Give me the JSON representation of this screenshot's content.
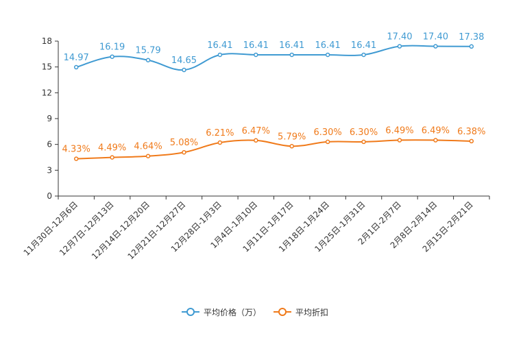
{
  "chart_data": {
    "type": "line",
    "categories": [
      "11月30日-12月6日",
      "12月7日-12月13日",
      "12月14日-12月20日",
      "12月21日-12月27日",
      "12月28日-1月3日",
      "1月4日-1月10日",
      "1月11日-1月17日",
      "1月18日-1月24日",
      "1月25日-1月31日",
      "2月1日-2月7日",
      "2月8日-2月14日",
      "2月15日-2月21日"
    ],
    "ylim": [
      0,
      18
    ],
    "yticks": [
      0,
      3,
      6,
      9,
      12,
      15,
      18
    ],
    "series": [
      {
        "name": "平均价格（万）",
        "color": "#3f9ad2",
        "values": [
          14.97,
          16.19,
          15.79,
          14.65,
          16.41,
          16.41,
          16.41,
          16.41,
          16.41,
          17.4,
          17.4,
          17.38
        ],
        "labels": [
          "14.97",
          "16.19",
          "15.79",
          "14.65",
          "16.41",
          "16.41",
          "16.41",
          "16.41",
          "16.41",
          "17.40",
          "17.40",
          "17.38"
        ]
      },
      {
        "name": "平均折扣",
        "color": "#f07a1a",
        "values": [
          4.33,
          4.49,
          4.64,
          5.08,
          6.21,
          6.47,
          5.79,
          6.3,
          6.3,
          6.49,
          6.49,
          6.38
        ],
        "labels": [
          "4.33%",
          "4.49%",
          "4.64%",
          "5.08%",
          "6.21%",
          "6.47%",
          "5.79%",
          "6.30%",
          "6.30%",
          "6.49%",
          "6.49%",
          "6.38%"
        ]
      }
    ],
    "legend": "bottom"
  }
}
